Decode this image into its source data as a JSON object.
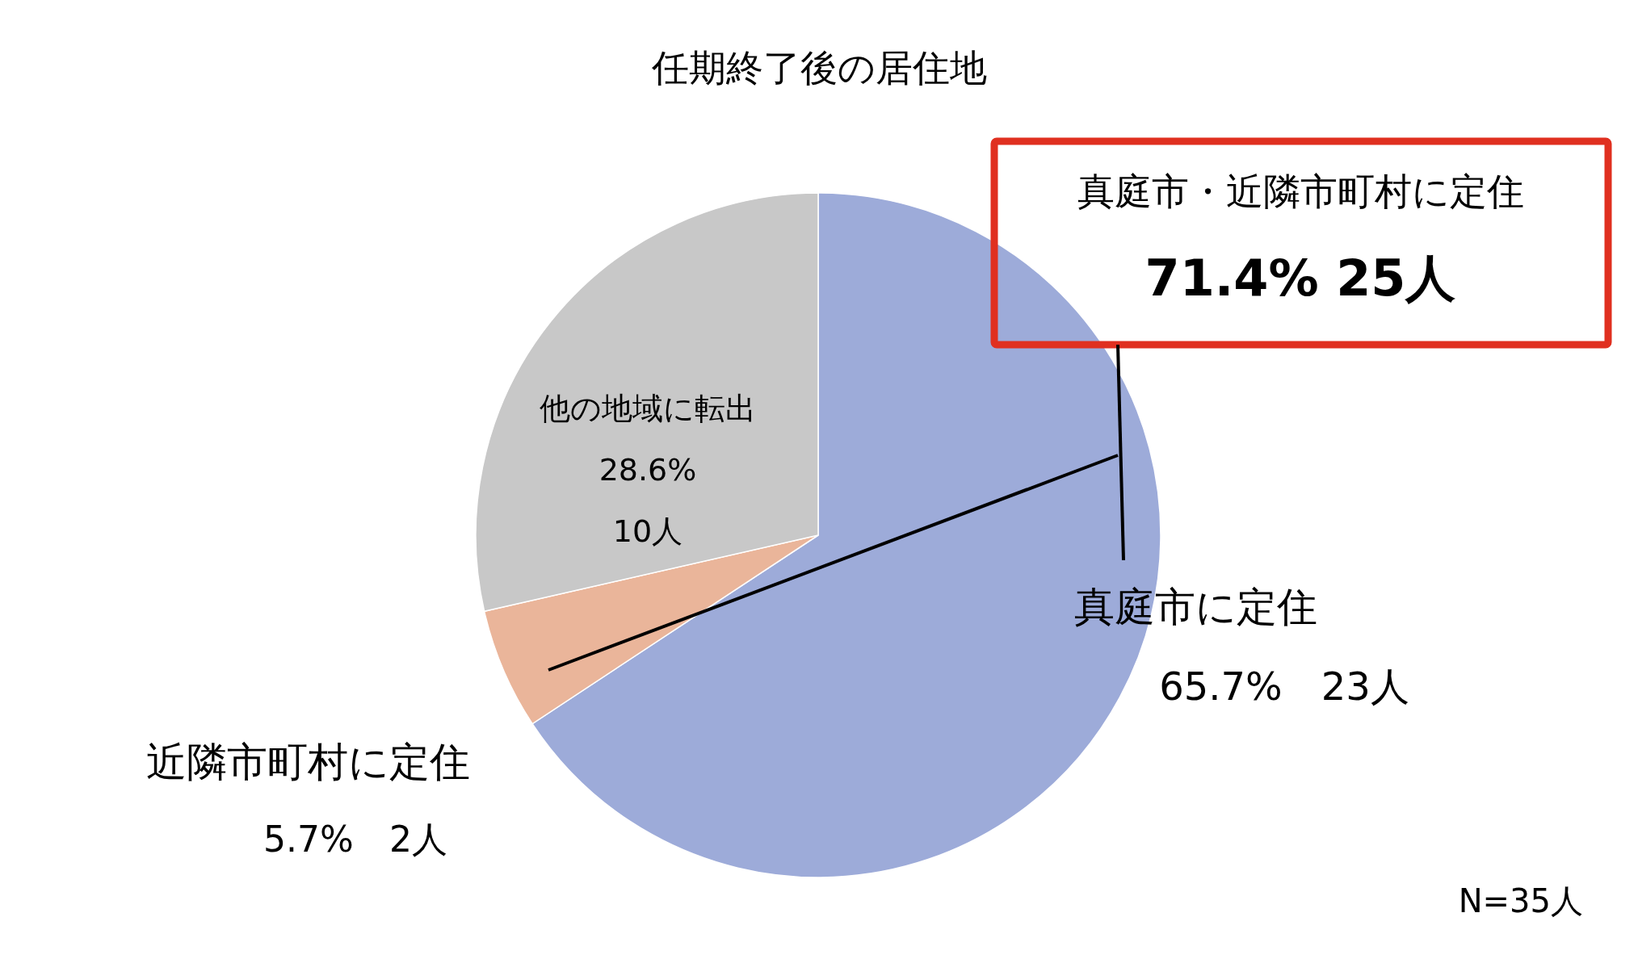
{
  "chart_data": {
    "type": "pie",
    "title": "任期終了後の居住地",
    "categories": [
      "真庭市に定住",
      "近隣市町村に定住",
      "他の地域に転出"
    ],
    "values": [
      23,
      2,
      10
    ],
    "value_labels": [
      "65.7%　23人",
      "5.7%　2人",
      "28.6%\n10人"
    ],
    "colors": [
      "#9dabd9",
      "#eab59a",
      "#c8c8c8"
    ],
    "annotations": [
      "真庭市・近隣市町村に定住",
      "71.4%  25人",
      "N=35人"
    ]
  }
}
